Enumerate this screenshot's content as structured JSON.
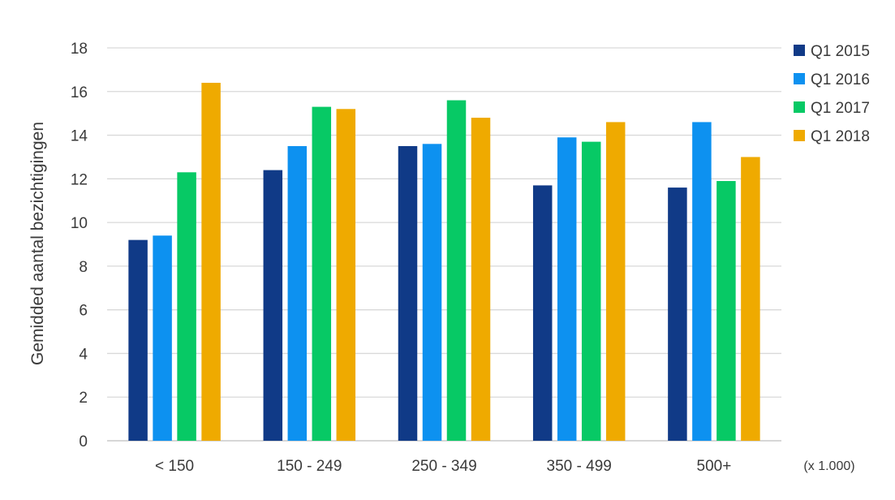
{
  "chart_data": {
    "type": "bar",
    "ylabel": "Gemidded aantal bezichtigingen",
    "xunit": "(x 1.000)",
    "ylim": [
      0,
      18
    ],
    "yticks": [
      0,
      2,
      4,
      6,
      8,
      10,
      12,
      14,
      16,
      18
    ],
    "grid": true,
    "legend": "right",
    "categories": [
      "< 150",
      "150 - 249",
      "250 - 349",
      "350 - 499",
      "500+"
    ],
    "series": [
      {
        "name": "Q1 2015",
        "color": "#103a87",
        "values": [
          9.2,
          12.4,
          13.5,
          11.7,
          11.6
        ]
      },
      {
        "name": "Q1 2016",
        "color": "#0d91f0",
        "values": [
          9.4,
          13.5,
          13.6,
          13.9,
          14.6
        ]
      },
      {
        "name": "Q1 2017",
        "color": "#07c965",
        "values": [
          12.3,
          15.3,
          15.6,
          13.7,
          11.9
        ]
      },
      {
        "name": "Q1 2018",
        "color": "#efaa00",
        "values": [
          16.4,
          15.2,
          14.8,
          14.6,
          13.0
        ]
      }
    ]
  }
}
